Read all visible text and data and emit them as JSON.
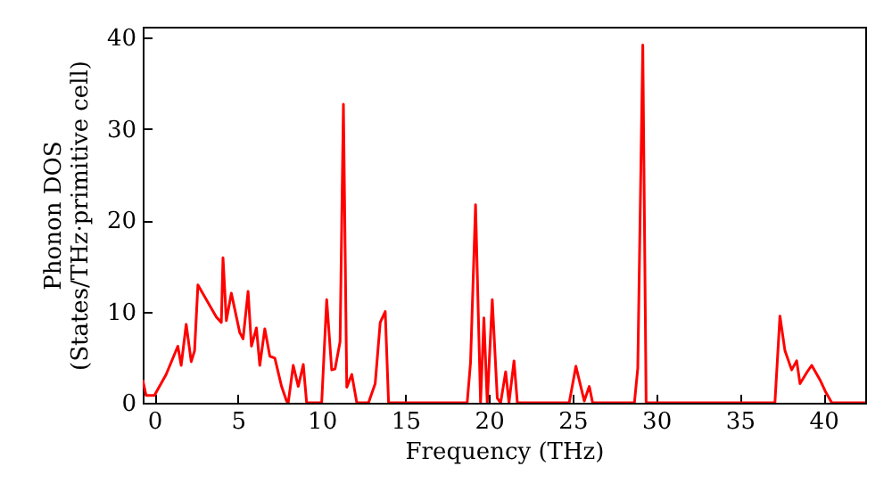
{
  "chart_data": {
    "type": "line",
    "xlabel": "Frequency (THz)",
    "ylabel": "Phonon DOS\n(States/THz·primitive cell)",
    "x": [
      -0.7,
      -0.5,
      0,
      0.7,
      1.4,
      1.6,
      1.9,
      2.2,
      2.4,
      2.6,
      3.7,
      4.0,
      4.1,
      4.3,
      4.6,
      5.1,
      5.3,
      5.6,
      5.8,
      6.1,
      6.3,
      6.6,
      6.9,
      7.2,
      7.6,
      7.9,
      8.0,
      8.3,
      8.6,
      8.9,
      9.1,
      10.0,
      10.3,
      10.6,
      10.8,
      11.1,
      11.3,
      11.5,
      11.8,
      12.1,
      12.8,
      13.2,
      13.5,
      13.8,
      14.0,
      18.7,
      18.9,
      19.2,
      19.5,
      19.7,
      19.9,
      20.2,
      20.5,
      20.7,
      21.0,
      21.2,
      21.5,
      21.7,
      24.8,
      25.2,
      25.7,
      26.0,
      26.2,
      28.7,
      28.9,
      29.2,
      29.4,
      37.1,
      37.4,
      37.7,
      38.1,
      38.4,
      38.6,
      39.0,
      39.3,
      39.8,
      40.1,
      40.5,
      42.5
    ],
    "series": [
      {
        "color": "#ff0000",
        "values": [
          2.5,
          0.8,
          0.8,
          3.1,
          6.2,
          4.1,
          8.6,
          4.5,
          5.7,
          12.9,
          9.4,
          8.8,
          15.9,
          9.0,
          12.0,
          7.7,
          7.0,
          12.2,
          6.2,
          8.2,
          4.1,
          8.1,
          5.1,
          4.9,
          1.8,
          0.2,
          0,
          4.1,
          1.8,
          4.2,
          0,
          0,
          11.3,
          3.6,
          3.7,
          6.7,
          32.7,
          1.7,
          3.1,
          0,
          0,
          2.1,
          8.8,
          10.0,
          0,
          0,
          4.4,
          21.7,
          0,
          9.3,
          0,
          11.3,
          0.5,
          0,
          3.4,
          0,
          4.6,
          0,
          0,
          4.0,
          0.2,
          1.8,
          0,
          0,
          3.8,
          39.2,
          0,
          0,
          9.5,
          5.7,
          3.6,
          4.6,
          2.1,
          3.3,
          4.1,
          2.5,
          1.3,
          0,
          0
        ]
      }
    ],
    "xlim": [
      -0.7,
      42.5
    ],
    "ylim": [
      0,
      41.2
    ],
    "xticks": [
      0,
      5,
      10,
      15,
      20,
      25,
      30,
      35,
      40
    ],
    "yticks": [
      0,
      10,
      20,
      30,
      40
    ],
    "grid": false,
    "marker": "none",
    "line_style": "solid"
  }
}
